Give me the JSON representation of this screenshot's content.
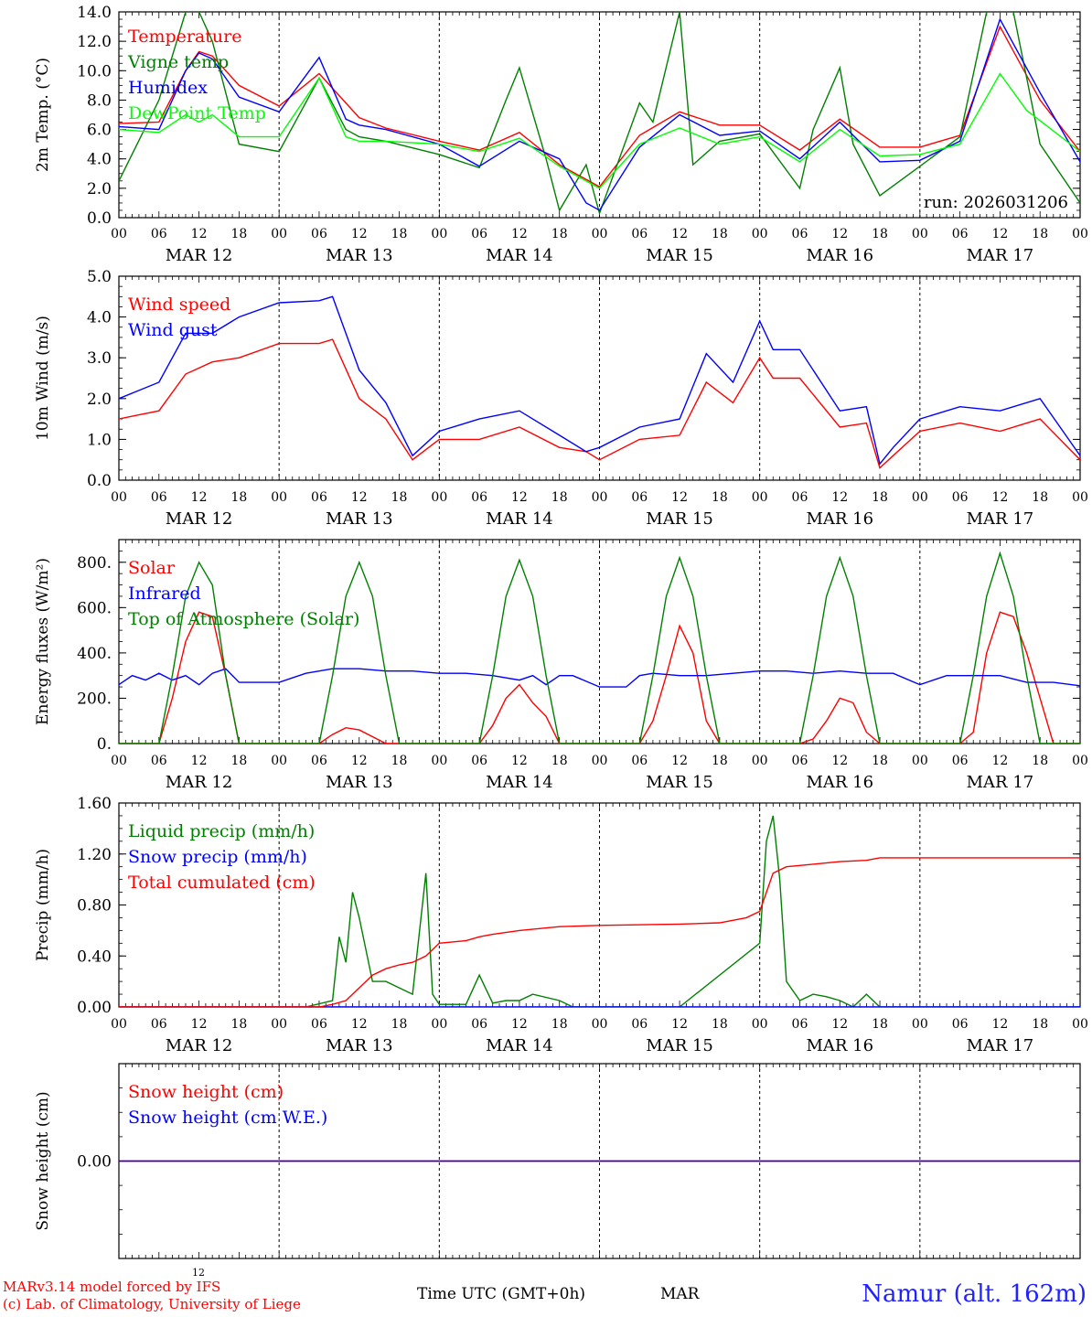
{
  "run_label": "run: 2026031206",
  "footer": {
    "model": "MARv3.14 model forced by IFS",
    "lab": "(c) Lab. of Climatology, University of Liege",
    "time_axis": "Time UTC (GMT+0h)",
    "month": "MAR",
    "small_tick": "12",
    "station": "Namur (alt. 162m)"
  },
  "x_axis": {
    "hour_labels": [
      "00",
      "06",
      "12",
      "18"
    ],
    "days": [
      "MAR 12",
      "MAR 13",
      "MAR 14",
      "MAR 15",
      "MAR 16",
      "MAR 17"
    ],
    "range_hours": [
      0,
      144
    ]
  },
  "colors": {
    "red": "#ff0000",
    "green": "#008000",
    "blue": "#0000ff",
    "lime": "#00ff00",
    "station": "#2222ff"
  },
  "chart_data": [
    {
      "type": "line",
      "ylabel": "2m Temp. (°C)",
      "ylim": [
        0,
        14
      ],
      "ticks": [
        "0.0",
        "2.0",
        "4.0",
        "6.0",
        "8.0",
        "10.0",
        "12.0",
        "14.0"
      ],
      "legend": [
        "Temperature",
        "Vigne temp",
        "Humidex",
        "DewPoint Temp"
      ],
      "series": [
        {
          "name": "Temperature",
          "color": "red",
          "x": [
            0,
            6,
            10,
            12,
            14,
            18,
            24,
            30,
            36,
            40,
            48,
            54,
            60,
            66,
            72,
            78,
            84,
            90,
            96,
            102,
            108,
            114,
            120,
            126,
            132,
            138,
            144
          ],
          "y": [
            6.4,
            6.5,
            10.0,
            11.3,
            11.0,
            9.0,
            7.6,
            9.8,
            6.8,
            6.1,
            5.2,
            4.6,
            5.8,
            3.6,
            2.1,
            5.6,
            7.2,
            6.3,
            6.3,
            4.6,
            6.7,
            4.8,
            4.8,
            5.6,
            13.0,
            8.0,
            4.5
          ]
        },
        {
          "name": "Vigne temp",
          "color": "green",
          "x": [
            0,
            6,
            10,
            12,
            14,
            18,
            24,
            30,
            34,
            36,
            40,
            48,
            54,
            58,
            60,
            64,
            66,
            70,
            72,
            78,
            80,
            84,
            86,
            90,
            96,
            102,
            104,
            108,
            110,
            114,
            120,
            126,
            130,
            134,
            138,
            144
          ],
          "y": [
            2.5,
            8.0,
            14.0,
            14.0,
            12.0,
            5.0,
            4.5,
            9.5,
            6.0,
            5.5,
            5.2,
            4.3,
            3.4,
            8.0,
            10.2,
            4.0,
            0.5,
            3.6,
            0.3,
            7.8,
            6.5,
            14.0,
            3.6,
            5.2,
            5.7,
            2.0,
            6.0,
            10.2,
            5.0,
            1.5,
            3.5,
            5.5,
            14.0,
            14.0,
            5.0,
            1.0
          ]
        },
        {
          "name": "Humidex",
          "color": "blue",
          "x": [
            0,
            6,
            10,
            12,
            14,
            18,
            24,
            30,
            34,
            36,
            40,
            48,
            54,
            60,
            66,
            70,
            72,
            78,
            84,
            90,
            96,
            102,
            108,
            114,
            120,
            126,
            132,
            138,
            144
          ],
          "y": [
            6.2,
            6.0,
            10.0,
            11.2,
            10.8,
            8.2,
            7.2,
            10.9,
            6.7,
            6.3,
            6.0,
            5.0,
            3.5,
            5.2,
            4.0,
            1.0,
            0.5,
            4.8,
            7.0,
            5.6,
            5.9,
            4.0,
            6.5,
            3.8,
            3.9,
            5.2,
            13.5,
            8.5,
            3.8
          ]
        },
        {
          "name": "DewPoint Temp",
          "color": "lime",
          "x": [
            0,
            6,
            10,
            12,
            14,
            18,
            24,
            30,
            34,
            36,
            40,
            48,
            54,
            60,
            66,
            72,
            78,
            84,
            90,
            96,
            102,
            108,
            114,
            120,
            126,
            132,
            136,
            144
          ],
          "y": [
            6.0,
            5.8,
            7.0,
            6.5,
            7.0,
            5.5,
            5.5,
            9.5,
            5.5,
            5.2,
            5.2,
            5.0,
            4.5,
            5.4,
            3.5,
            2.0,
            5.0,
            6.1,
            5.0,
            5.5,
            3.8,
            6.0,
            4.2,
            4.3,
            5.0,
            9.8,
            7.3,
            4.5
          ]
        }
      ]
    },
    {
      "type": "line",
      "ylabel": "10m Wind (m/s)",
      "ylim": [
        0,
        5
      ],
      "ticks": [
        "0.0",
        "1.0",
        "2.0",
        "3.0",
        "4.0",
        "5.0"
      ],
      "legend": [
        "Wind speed",
        "Wind gust"
      ],
      "series": [
        {
          "name": "Wind speed",
          "color": "red",
          "x": [
            0,
            3,
            6,
            10,
            14,
            18,
            24,
            30,
            32,
            36,
            40,
            44,
            48,
            54,
            60,
            66,
            70,
            72,
            78,
            84,
            88,
            92,
            96,
            98,
            102,
            108,
            112,
            114,
            116,
            120,
            126,
            132,
            138,
            144
          ],
          "y": [
            1.5,
            1.6,
            1.7,
            2.6,
            2.9,
            3.0,
            3.35,
            3.35,
            3.45,
            2.0,
            1.5,
            0.5,
            1.0,
            1.0,
            1.3,
            0.8,
            0.7,
            0.5,
            1.0,
            1.1,
            2.4,
            1.9,
            3.0,
            2.5,
            2.5,
            1.3,
            1.4,
            0.3,
            0.6,
            1.2,
            1.4,
            1.2,
            1.5,
            0.5
          ]
        },
        {
          "name": "Wind gust",
          "color": "blue",
          "x": [
            0,
            3,
            6,
            10,
            14,
            18,
            24,
            30,
            32,
            36,
            40,
            44,
            48,
            54,
            60,
            66,
            70,
            72,
            78,
            84,
            88,
            92,
            96,
            98,
            102,
            108,
            112,
            114,
            116,
            120,
            126,
            132,
            138,
            144
          ],
          "y": [
            2.0,
            2.2,
            2.4,
            3.6,
            3.6,
            4.0,
            4.35,
            4.4,
            4.5,
            2.7,
            1.9,
            0.6,
            1.2,
            1.5,
            1.7,
            1.1,
            0.7,
            0.8,
            1.3,
            1.5,
            3.1,
            2.4,
            3.9,
            3.2,
            3.2,
            1.7,
            1.8,
            0.4,
            0.8,
            1.5,
            1.8,
            1.7,
            2.0,
            0.6
          ]
        }
      ]
    },
    {
      "type": "line",
      "ylabel": "Energy fluxes (W/m²)",
      "ylim": [
        0,
        900
      ],
      "ticks": [
        "0.",
        "200.",
        "400.",
        "600.",
        "800."
      ],
      "legend": [
        "Solar",
        "Infrared",
        "Top of Atmosphere (Solar)"
      ],
      "series": [
        {
          "name": "Solar",
          "color": "red",
          "x": [
            0,
            6,
            8,
            10,
            12,
            14,
            16,
            18,
            30,
            32,
            34,
            36,
            40,
            48,
            54,
            56,
            58,
            60,
            62,
            64,
            66,
            68,
            70,
            72,
            78,
            80,
            82,
            84,
            86,
            88,
            90,
            96,
            102,
            104,
            106,
            108,
            110,
            112,
            114,
            116,
            120,
            126,
            128,
            130,
            132,
            134,
            136,
            138,
            140,
            144
          ],
          "y": [
            0,
            0,
            200,
            450,
            580,
            560,
            300,
            0,
            0,
            40,
            70,
            60,
            0,
            0,
            0,
            80,
            200,
            260,
            180,
            120,
            0,
            0,
            0,
            0,
            0,
            100,
            300,
            520,
            400,
            100,
            0,
            0,
            0,
            20,
            100,
            200,
            180,
            50,
            0,
            0,
            0,
            0,
            50,
            400,
            580,
            560,
            400,
            200,
            0,
            0
          ]
        },
        {
          "name": "Infrared",
          "color": "blue",
          "x": [
            0,
            2,
            4,
            6,
            8,
            10,
            12,
            14,
            16,
            18,
            20,
            24,
            28,
            32,
            36,
            40,
            44,
            48,
            52,
            56,
            60,
            62,
            64,
            66,
            68,
            72,
            76,
            78,
            80,
            84,
            88,
            92,
            96,
            100,
            104,
            108,
            112,
            116,
            120,
            124,
            128,
            132,
            136,
            140,
            144
          ],
          "y": [
            260,
            300,
            280,
            310,
            280,
            300,
            260,
            310,
            330,
            270,
            270,
            270,
            310,
            330,
            330,
            320,
            320,
            310,
            310,
            300,
            280,
            300,
            260,
            300,
            300,
            250,
            250,
            300,
            310,
            300,
            300,
            310,
            320,
            320,
            310,
            320,
            310,
            310,
            260,
            300,
            300,
            300,
            270,
            270,
            255
          ]
        },
        {
          "name": "Top of Atmosphere (Solar)",
          "color": "green",
          "x": [
            0,
            6,
            8,
            10,
            12,
            14,
            16,
            18,
            30,
            32,
            34,
            36,
            38,
            40,
            42,
            54,
            56,
            58,
            60,
            62,
            64,
            66,
            78,
            80,
            82,
            84,
            86,
            88,
            90,
            102,
            104,
            106,
            108,
            110,
            112,
            114,
            126,
            128,
            130,
            132,
            134,
            136,
            138,
            144
          ],
          "y": [
            0,
            0,
            300,
            650,
            800,
            700,
            300,
            0,
            0,
            300,
            650,
            800,
            650,
            300,
            0,
            0,
            300,
            650,
            810,
            650,
            300,
            0,
            0,
            300,
            650,
            820,
            650,
            300,
            0,
            0,
            300,
            650,
            820,
            650,
            300,
            0,
            0,
            300,
            650,
            840,
            650,
            300,
            0,
            0
          ]
        }
      ]
    },
    {
      "type": "line",
      "ylabel": "Precip (mm/h)",
      "ylim": [
        0,
        1.6
      ],
      "ticks": [
        "0.00",
        "0.40",
        "0.80",
        "1.20",
        "1.60"
      ],
      "legend": [
        "Liquid precip (mm/h)",
        "Snow precip (mm/h)",
        "Total cumulated (cm)"
      ],
      "series": [
        {
          "name": "Liquid precip (mm/h)",
          "color": "green",
          "x": [
            0,
            28,
            32,
            33,
            34,
            35,
            36,
            38,
            40,
            44,
            46,
            47,
            48,
            52,
            54,
            56,
            58,
            60,
            62,
            66,
            68,
            70,
            72,
            84,
            96,
            97,
            98,
            99,
            100,
            102,
            104,
            106,
            108,
            110,
            112,
            114,
            144
          ],
          "y": [
            0,
            0,
            0.05,
            0.55,
            0.35,
            0.9,
            0.7,
            0.2,
            0.2,
            0.1,
            1.05,
            0.1,
            0.02,
            0.02,
            0.25,
            0.03,
            0.05,
            0.05,
            0.1,
            0.05,
            0,
            0,
            0,
            0,
            0.5,
            1.3,
            1.5,
            1.0,
            0.2,
            0.05,
            0.1,
            0.08,
            0.05,
            0,
            0.1,
            0,
            0
          ]
        },
        {
          "name": "Snow precip (mm/h)",
          "color": "blue",
          "x": [
            0,
            144
          ],
          "y": [
            0,
            0
          ]
        },
        {
          "name": "Total cumulated (cm)",
          "color": "red",
          "x": [
            0,
            28,
            30,
            32,
            34,
            36,
            38,
            40,
            42,
            44,
            46,
            48,
            52,
            54,
            56,
            60,
            66,
            72,
            84,
            90,
            94,
            96,
            97,
            98,
            100,
            104,
            108,
            112,
            114,
            120,
            144
          ],
          "y": [
            0,
            0,
            0,
            0.02,
            0.05,
            0.15,
            0.25,
            0.3,
            0.33,
            0.35,
            0.4,
            0.5,
            0.52,
            0.55,
            0.57,
            0.6,
            0.63,
            0.64,
            0.65,
            0.66,
            0.7,
            0.75,
            0.9,
            1.05,
            1.1,
            1.12,
            1.14,
            1.15,
            1.17,
            1.17,
            1.17
          ]
        }
      ]
    },
    {
      "type": "line",
      "ylabel": "Snow height (cm)",
      "ylim": [
        -1,
        1
      ],
      "ticks": [
        "0.00"
      ],
      "legend": [
        "Snow height (cm)",
        "Snow height (cm W.E.)"
      ],
      "series": [
        {
          "name": "Snow height (cm)",
          "color": "red",
          "x": [
            0,
            144
          ],
          "y": [
            0,
            0
          ]
        },
        {
          "name": "Snow height (cm W.E.)",
          "color": "blue",
          "x": [
            0,
            144
          ],
          "y": [
            0,
            0
          ]
        }
      ]
    }
  ]
}
